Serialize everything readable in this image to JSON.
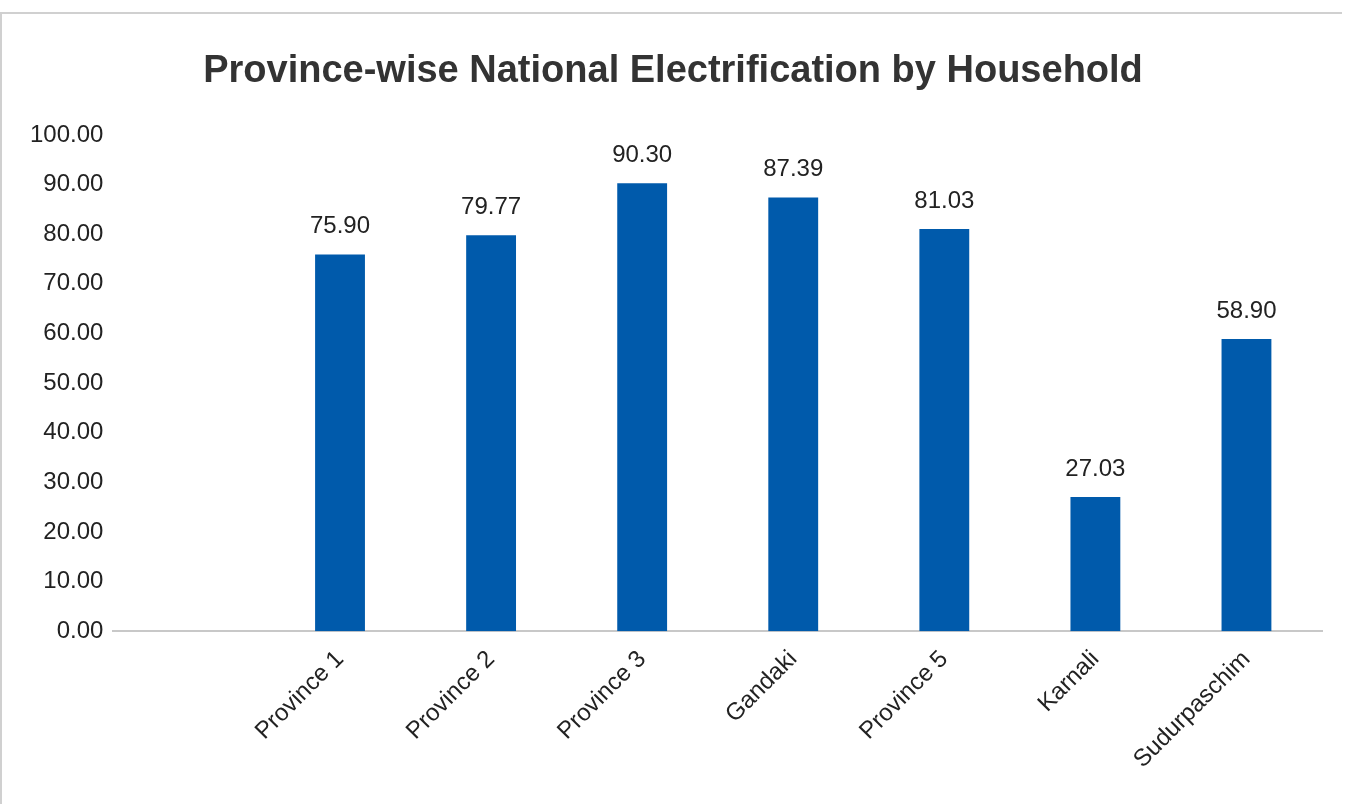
{
  "chart_data": {
    "type": "bar",
    "title": "Province-wise National Electrification by Household",
    "categories": [
      null,
      "Province 1",
      "Province 2",
      "Province 3",
      "Gandaki",
      "Province 5",
      "Karnali",
      "Sudurpaschim"
    ],
    "values": [
      null,
      75.9,
      79.77,
      90.3,
      87.39,
      81.03,
      27.03,
      58.9
    ],
    "value_labels": [
      null,
      "75.90",
      "79.77",
      "90.30",
      "87.39",
      "81.03",
      "27.03",
      "58.90"
    ],
    "color": "#005aab",
    "ylim": [
      0,
      100
    ],
    "yticks": [
      {
        "value": 0,
        "label": "0.00"
      },
      {
        "value": 10,
        "label": "10.00"
      },
      {
        "value": 20,
        "label": "20.00"
      },
      {
        "value": 30,
        "label": "30.00"
      },
      {
        "value": 40,
        "label": "40.00"
      },
      {
        "value": 50,
        "label": "50.00"
      },
      {
        "value": 60,
        "label": "60.00"
      },
      {
        "value": 70,
        "label": "70.00"
      },
      {
        "value": 80,
        "label": "80.00"
      },
      {
        "value": 90,
        "label": "90.00"
      },
      {
        "value": 100,
        "label": "100.00"
      }
    ],
    "grid": false,
    "legend": false
  }
}
